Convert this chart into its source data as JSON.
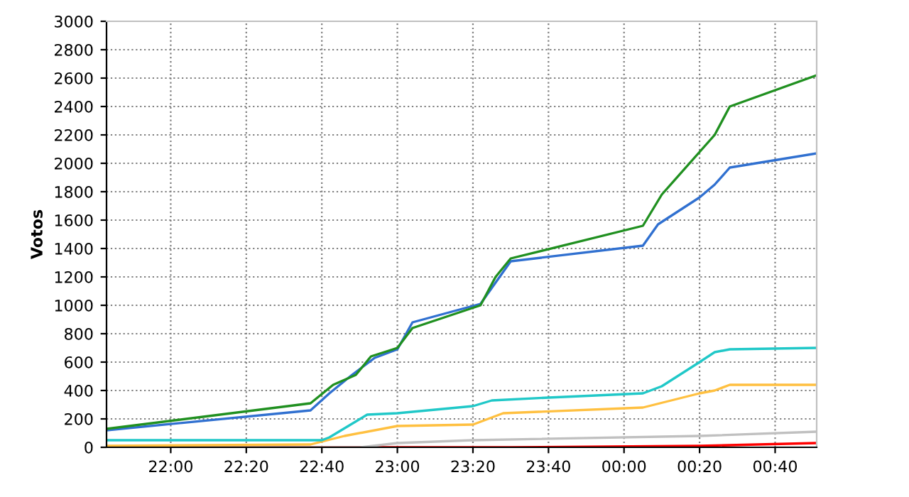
{
  "chart_data": {
    "type": "line",
    "ylabel": "Votos",
    "xlim": [
      "2000-01-01T21:43",
      "2000-01-02T00:51"
    ],
    "ylim": [
      0,
      3000
    ],
    "xticks": [
      {
        "value": "2000-01-01T22:00",
        "label": "22:00"
      },
      {
        "value": "2000-01-01T22:20",
        "label": "22:20"
      },
      {
        "value": "2000-01-01T22:40",
        "label": "22:40"
      },
      {
        "value": "2000-01-01T23:00",
        "label": "23:00"
      },
      {
        "value": "2000-01-01T23:20",
        "label": "23:20"
      },
      {
        "value": "2000-01-01T23:40",
        "label": "23:40"
      },
      {
        "value": "2000-01-02T00:00",
        "label": "00:00"
      },
      {
        "value": "2000-01-02T00:20",
        "label": "00:20"
      },
      {
        "value": "2000-01-02T00:40",
        "label": "00:40"
      }
    ],
    "yticks": [
      0,
      200,
      400,
      600,
      800,
      1000,
      1200,
      1400,
      1600,
      1800,
      2000,
      2200,
      2400,
      2600,
      2800,
      3000
    ],
    "grid": true,
    "legend": false,
    "marker": "none",
    "line_style": "solid",
    "series": [
      {
        "color": "#ff0000",
        "x": [
          "2000-01-01T21:43",
          "2000-01-01T23:30",
          "2000-01-02T00:20",
          "2000-01-02T00:51"
        ],
        "values": [
          0,
          0,
          10,
          30
        ]
      },
      {
        "color": "#c0c0c0",
        "x": [
          "2000-01-01T21:43",
          "2000-01-01T22:50",
          "2000-01-01T23:00",
          "2000-01-01T23:20",
          "2000-01-02T00:20",
          "2000-01-02T00:51"
        ],
        "values": [
          0,
          0,
          30,
          50,
          80,
          110
        ]
      },
      {
        "color": "#ffc040",
        "x": [
          "2000-01-01T21:43",
          "2000-01-01T22:37",
          "2000-01-01T22:46",
          "2000-01-01T23:00",
          "2000-01-01T23:20",
          "2000-01-01T23:28",
          "2000-01-02T00:05",
          "2000-01-02T00:20",
          "2000-01-02T00:24",
          "2000-01-02T00:28",
          "2000-01-02T00:51"
        ],
        "values": [
          10,
          20,
          80,
          150,
          160,
          240,
          280,
          380,
          400,
          440,
          440
        ]
      },
      {
        "color": "#20c8c8",
        "x": [
          "2000-01-01T21:43",
          "2000-01-01T22:40",
          "2000-01-01T22:42",
          "2000-01-01T22:52",
          "2000-01-01T23:00",
          "2000-01-01T23:20",
          "2000-01-01T23:25",
          "2000-01-01T23:40",
          "2000-01-02T00:05",
          "2000-01-02T00:10",
          "2000-01-02T00:20",
          "2000-01-02T00:24",
          "2000-01-02T00:28",
          "2000-01-02T00:51"
        ],
        "values": [
          50,
          50,
          70,
          230,
          240,
          290,
          330,
          350,
          380,
          430,
          600,
          670,
          690,
          700
        ]
      },
      {
        "color": "#3070d0",
        "x": [
          "2000-01-01T21:43",
          "2000-01-01T22:37",
          "2000-01-01T22:42",
          "2000-01-01T22:48",
          "2000-01-01T22:54",
          "2000-01-01T23:00",
          "2000-01-01T23:04",
          "2000-01-01T23:22",
          "2000-01-01T23:30",
          "2000-01-02T00:05",
          "2000-01-02T00:09",
          "2000-01-02T00:20",
          "2000-01-02T00:24",
          "2000-01-02T00:28",
          "2000-01-02T00:51"
        ],
        "values": [
          120,
          260,
          380,
          510,
          630,
          690,
          880,
          1010,
          1310,
          1420,
          1570,
          1760,
          1850,
          1970,
          2070
        ]
      },
      {
        "color": "#209020",
        "x": [
          "2000-01-01T21:43",
          "2000-01-01T22:37",
          "2000-01-01T22:43",
          "2000-01-01T22:49",
          "2000-01-01T22:53",
          "2000-01-01T23:00",
          "2000-01-01T23:04",
          "2000-01-01T23:22",
          "2000-01-01T23:26",
          "2000-01-01T23:30",
          "2000-01-02T00:05",
          "2000-01-02T00:10",
          "2000-01-02T00:24",
          "2000-01-02T00:28",
          "2000-01-02T00:51"
        ],
        "values": [
          130,
          310,
          440,
          510,
          640,
          700,
          840,
          1000,
          1200,
          1330,
          1560,
          1780,
          2200,
          2400,
          2620
        ]
      }
    ]
  }
}
